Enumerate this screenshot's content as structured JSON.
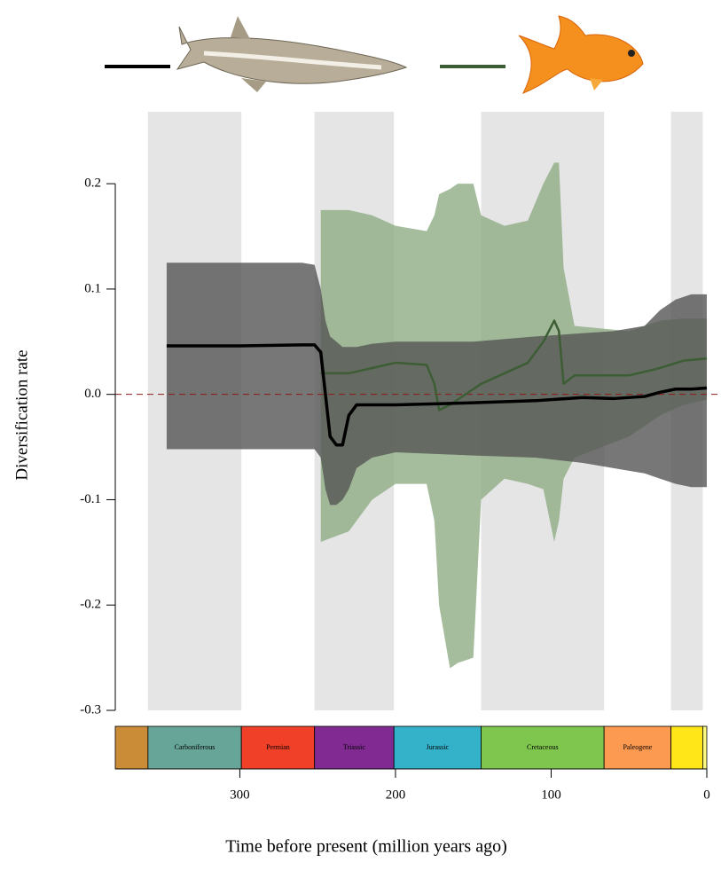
{
  "chart_data": {
    "type": "line",
    "x_label": "Time before present (million years ago)",
    "y_label": "Diversification rate",
    "xlim": [
      380,
      0
    ],
    "xticks": [
      300,
      200,
      100,
      0
    ],
    "ylim": [
      -0.3,
      0.27
    ],
    "yticks": [
      0.2,
      0.1,
      {
        "value": 0,
        "label": "0.0"
      },
      -0.1,
      -0.2,
      -0.3
    ],
    "hline": 0,
    "hline_color": "#8b1a1a",
    "periods": [
      {
        "name": null,
        "start": 380,
        "end": 359,
        "color": "#cb8c37"
      },
      {
        "name": "Carboniferous",
        "start": 359,
        "end": 299,
        "color": "#67a599"
      },
      {
        "name": "Permian",
        "start": 299,
        "end": 252,
        "color": "#f04028"
      },
      {
        "name": "Triassic",
        "start": 252,
        "end": 201,
        "color": "#812b92"
      },
      {
        "name": "Jurassic",
        "start": 201,
        "end": 145,
        "color": "#34b2c9"
      },
      {
        "name": "Cretaceous",
        "start": 145,
        "end": 66,
        "color": "#7fc64e"
      },
      {
        "name": "Paleogene",
        "start": 66,
        "end": 23,
        "color": "#fd9a52"
      },
      {
        "name": null,
        "start": 23,
        "end": 2.6,
        "color": "#ffe619"
      },
      {
        "name": null,
        "start": 2.6,
        "end": 0,
        "color": "#f9f97f"
      }
    ],
    "series": [
      {
        "color": "#000000",
        "band_color": "#555555",
        "x": [
          347,
          300,
          260,
          252,
          248,
          245,
          242,
          238,
          234,
          230,
          225,
          215,
          200,
          150,
          110,
          80,
          60,
          40,
          30,
          20,
          10,
          0
        ],
        "values": [
          0.046,
          0.046,
          0.047,
          0.047,
          0.04,
          0.0,
          -0.04,
          -0.048,
          -0.048,
          -0.02,
          -0.01,
          -0.01,
          -0.01,
          -0.008,
          -0.006,
          -0.003,
          -0.004,
          -0.002,
          0.002,
          0.005,
          0.005,
          0.006
        ],
        "upper": [
          0.125,
          0.125,
          0.125,
          0.123,
          0.1,
          0.07,
          0.055,
          0.05,
          0.045,
          0.045,
          0.045,
          0.048,
          0.05,
          0.05,
          0.055,
          0.058,
          0.06,
          0.065,
          0.08,
          0.09,
          0.095,
          0.095
        ],
        "lower": [
          -0.052,
          -0.052,
          -0.052,
          -0.052,
          -0.06,
          -0.09,
          -0.105,
          -0.105,
          -0.1,
          -0.09,
          -0.07,
          -0.06,
          -0.055,
          -0.058,
          -0.06,
          -0.065,
          -0.07,
          -0.075,
          -0.08,
          -0.085,
          -0.088,
          -0.088
        ]
      },
      {
        "color": "#3d5e35",
        "band_color": "#8fac85",
        "x": [
          248,
          230,
          215,
          200,
          180,
          175,
          172,
          165,
          160,
          150,
          145,
          130,
          115,
          105,
          98,
          95,
          92,
          85,
          50,
          30,
          15,
          0
        ],
        "values": [
          0.02,
          0.02,
          0.025,
          0.03,
          0.028,
          0.01,
          -0.015,
          -0.01,
          -0.005,
          0.005,
          0.01,
          0.02,
          0.03,
          0.05,
          0.07,
          0.06,
          0.01,
          0.018,
          0.018,
          0.025,
          0.032,
          0.034
        ],
        "upper": [
          0.175,
          0.175,
          0.17,
          0.16,
          0.155,
          0.17,
          0.19,
          0.195,
          0.2,
          0.2,
          0.17,
          0.16,
          0.165,
          0.2,
          0.22,
          0.22,
          0.12,
          0.065,
          0.06,
          0.07,
          0.072,
          0.072
        ],
        "lower": [
          -0.14,
          -0.13,
          -0.1,
          -0.085,
          -0.085,
          -0.12,
          -0.2,
          -0.26,
          -0.255,
          -0.25,
          -0.1,
          -0.08,
          -0.085,
          -0.09,
          -0.14,
          -0.12,
          -0.08,
          -0.06,
          -0.04,
          -0.02,
          -0.01,
          -0.005
        ]
      }
    ]
  }
}
